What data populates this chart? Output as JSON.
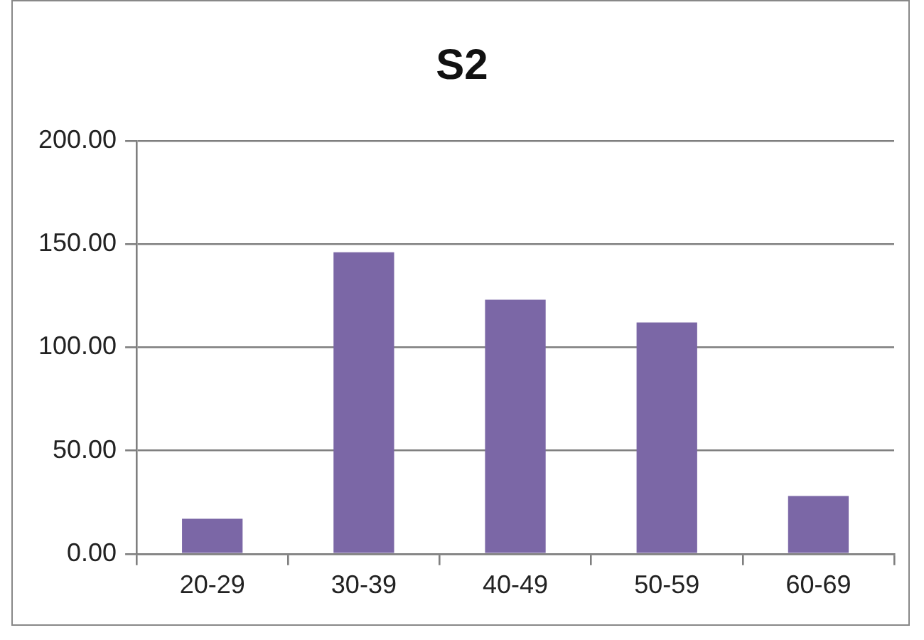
{
  "chart_data": {
    "type": "bar",
    "title": "S2",
    "categories": [
      "20-29",
      "30-39",
      "40-49",
      "50-59",
      "60-69"
    ],
    "values": [
      17,
      146,
      123,
      112,
      28
    ],
    "color": "#7b67a6",
    "ylim": [
      0,
      200
    ],
    "yticks": [
      {
        "value": 0,
        "label": "0.00"
      },
      {
        "value": 50,
        "label": "50.00"
      },
      {
        "value": 100,
        "label": "100.00"
      },
      {
        "value": 150,
        "label": "150.00"
      },
      {
        "value": 200,
        "label": "200.00"
      }
    ],
    "grid": "y",
    "legend": false
  }
}
